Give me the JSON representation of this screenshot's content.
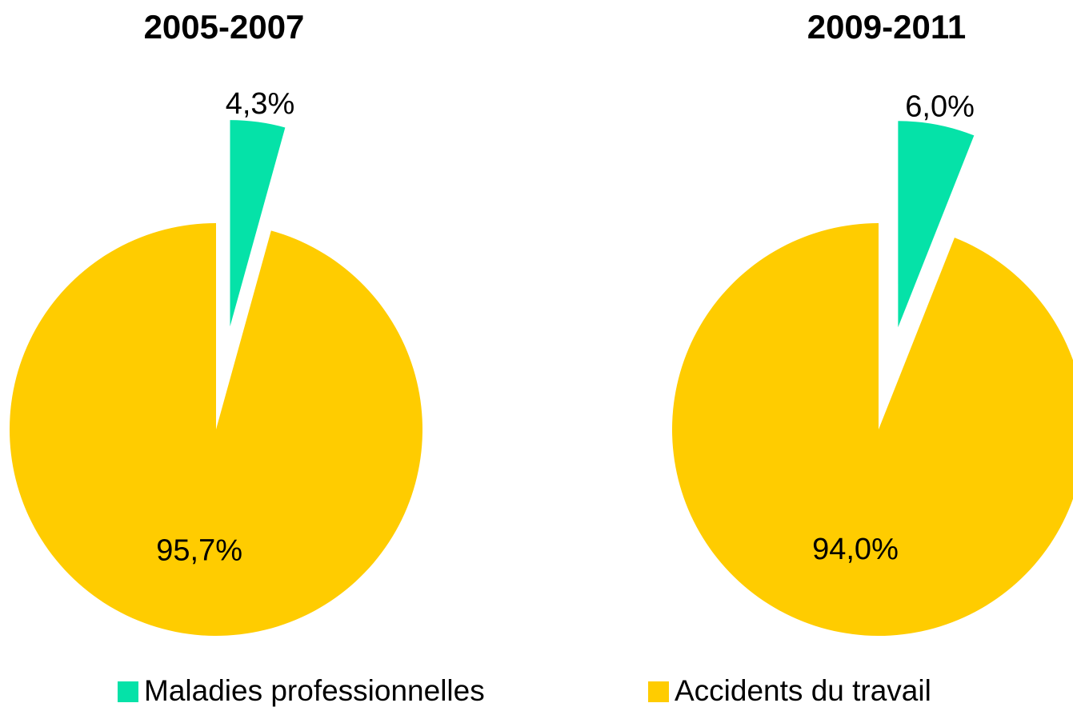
{
  "chart_data": [
    {
      "type": "pie",
      "title": "2005-2007",
      "categories": [
        "Maladies professionnelles",
        "Accidents du travail"
      ],
      "values": [
        4.3,
        95.7
      ],
      "value_labels": [
        "4,3%",
        "95,7%"
      ],
      "colors": [
        "#05e2a8",
        "#ffcc00"
      ]
    },
    {
      "type": "pie",
      "title": "2009-2011",
      "categories": [
        "Maladies professionnelles",
        "Accidents du travail"
      ],
      "values": [
        6.0,
        94.0
      ],
      "value_labels": [
        "6,0%",
        "94,0%"
      ],
      "colors": [
        "#05e2a8",
        "#ffcc00"
      ]
    }
  ]
}
